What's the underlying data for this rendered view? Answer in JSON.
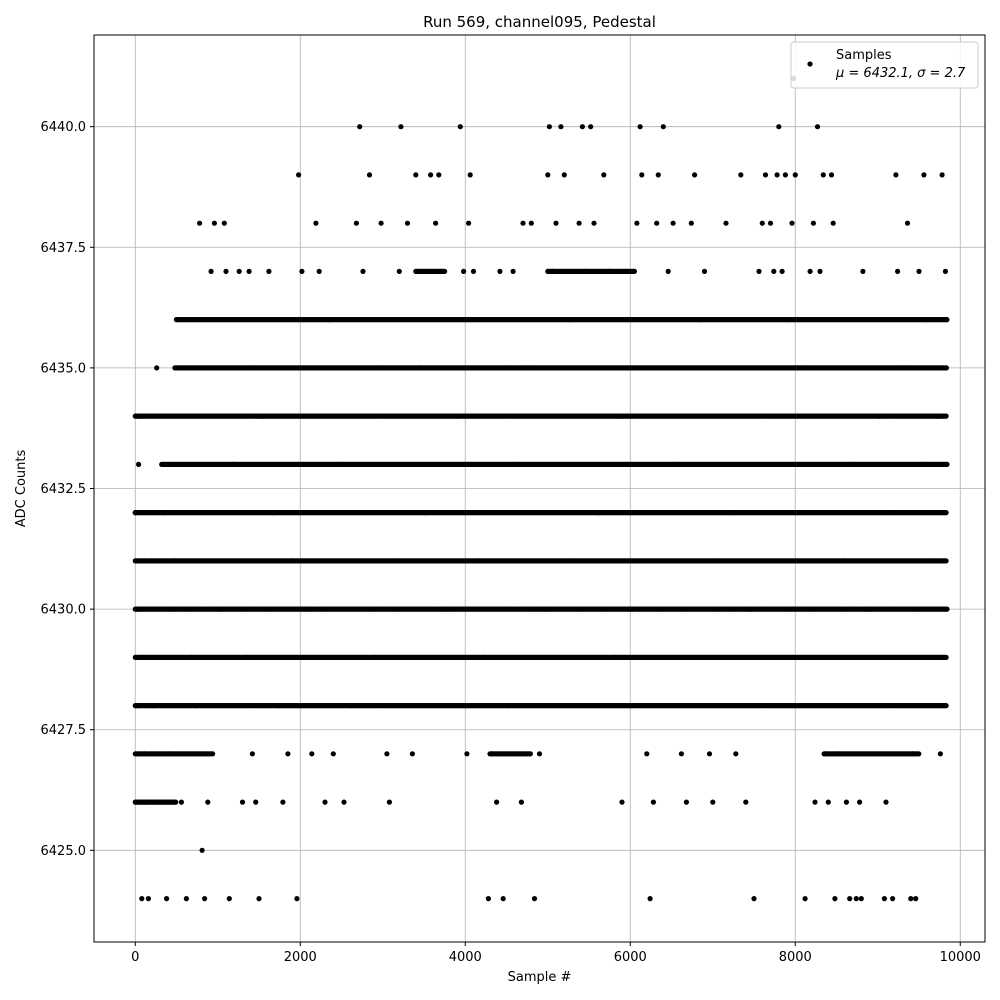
{
  "chart_data": {
    "type": "scatter",
    "title": "Run 569, channel095, Pedestal",
    "xlabel": "Sample #",
    "ylabel": "ADC Counts",
    "xlim": [
      -500,
      10300
    ],
    "ylim": [
      6423.1,
      6441.9
    ],
    "x_ticks": [
      0,
      2000,
      4000,
      6000,
      8000,
      10000
    ],
    "y_ticks": [
      6425.0,
      6427.5,
      6430.0,
      6432.5,
      6435.0,
      6437.5,
      6440.0
    ],
    "x_tick_labels": [
      "0",
      "2000",
      "4000",
      "6000",
      "8000",
      "10000"
    ],
    "y_tick_labels": [
      "6425.0",
      "6427.5",
      "6430.0",
      "6432.5",
      "6435.0",
      "6437.5",
      "6440.0"
    ],
    "grid": true,
    "legend_position": "top-right",
    "marker_color": "#000000",
    "series": [
      {
        "name": "Samples",
        "stats_label": "μ = 6432.1, σ = 2.7",
        "points": [
          [
            0,
            6432
          ],
          [
            10,
            6431
          ],
          [
            20,
            6430
          ],
          [
            30,
            6428
          ],
          [
            40,
            6433
          ],
          [
            60,
            6434
          ],
          [
            80,
            6424
          ],
          [
            90,
            6429
          ],
          [
            110,
            6427
          ],
          [
            130,
            6426
          ],
          [
            160,
            6424
          ],
          [
            200,
            6431
          ],
          [
            220,
            6428
          ],
          [
            260,
            6435
          ],
          [
            300,
            6429
          ],
          [
            340,
            6432
          ],
          [
            380,
            6424
          ],
          [
            420,
            6427
          ],
          [
            460,
            6430
          ],
          [
            480,
            6431
          ],
          [
            500,
            6436
          ],
          [
            560,
            6426
          ],
          [
            620,
            6424
          ],
          [
            680,
            6429
          ],
          [
            740,
            6428
          ],
          [
            780,
            6438
          ],
          [
            810,
            6425
          ],
          [
            840,
            6424
          ],
          [
            880,
            6426
          ],
          [
            920,
            6437
          ],
          [
            960,
            6438
          ],
          [
            1020,
            6430
          ],
          [
            1080,
            6438
          ],
          [
            1100,
            6437
          ],
          [
            1140,
            6424
          ],
          [
            1180,
            6433
          ],
          [
            1260,
            6437
          ],
          [
            1300,
            6426
          ],
          [
            1350,
            6429
          ],
          [
            1380,
            6437
          ],
          [
            1420,
            6427
          ],
          [
            1460,
            6426
          ],
          [
            1500,
            6424
          ],
          [
            1540,
            6434
          ],
          [
            1620,
            6437
          ],
          [
            1680,
            6432
          ],
          [
            1740,
            6428
          ],
          [
            1790,
            6426
          ],
          [
            1850,
            6427
          ],
          [
            1900,
            6431
          ],
          [
            1960,
            6424
          ],
          [
            1980,
            6439
          ],
          [
            2020,
            6437
          ],
          [
            2080,
            6430
          ],
          [
            2140,
            6427
          ],
          [
            2190,
            6438
          ],
          [
            2230,
            6437
          ],
          [
            2300,
            6426
          ],
          [
            2350,
            6436
          ],
          [
            2400,
            6427
          ],
          [
            2460,
            6433
          ],
          [
            2530,
            6426
          ],
          [
            2600,
            6428
          ],
          [
            2680,
            6438
          ],
          [
            2720,
            6440
          ],
          [
            2760,
            6437
          ],
          [
            2840,
            6439
          ],
          [
            2900,
            6429
          ],
          [
            2980,
            6438
          ],
          [
            3050,
            6427
          ],
          [
            3080,
            6426
          ],
          [
            3140,
            6431
          ],
          [
            3200,
            6437
          ],
          [
            3220,
            6440
          ],
          [
            3300,
            6438
          ],
          [
            3360,
            6427
          ],
          [
            3400,
            6439
          ],
          [
            3460,
            6435
          ],
          [
            3520,
            6432
          ],
          [
            3580,
            6439
          ],
          [
            3640,
            6438
          ],
          [
            3680,
            6439
          ],
          [
            3700,
            6437
          ],
          [
            3760,
            6430
          ],
          [
            3820,
            6428
          ],
          [
            3900,
            6434
          ],
          [
            3940,
            6440
          ],
          [
            3980,
            6437
          ],
          [
            4020,
            6427
          ],
          [
            4040,
            6438
          ],
          [
            4060,
            6439
          ],
          [
            4100,
            6437
          ],
          [
            4160,
            6431
          ],
          [
            4220,
            6429
          ],
          [
            4280,
            6424
          ],
          [
            4320,
            6427
          ],
          [
            4380,
            6426
          ],
          [
            4420,
            6437
          ],
          [
            4460,
            6424
          ],
          [
            4520,
            6428
          ],
          [
            4580,
            6437
          ],
          [
            4640,
            6433
          ],
          [
            4680,
            6426
          ],
          [
            4700,
            6438
          ],
          [
            4760,
            6435
          ],
          [
            4800,
            6438
          ],
          [
            4840,
            6424
          ],
          [
            4900,
            6427
          ],
          [
            4960,
            6430
          ],
          [
            5000,
            6439
          ],
          [
            5020,
            6440
          ],
          [
            5060,
            6437
          ],
          [
            5100,
            6438
          ],
          [
            5160,
            6440
          ],
          [
            5200,
            6439
          ],
          [
            5260,
            6436
          ],
          [
            5320,
            6431
          ],
          [
            5380,
            6438
          ],
          [
            5420,
            6440
          ],
          [
            5460,
            6437
          ],
          [
            5520,
            6440
          ],
          [
            5560,
            6438
          ],
          [
            5620,
            6432
          ],
          [
            5680,
            6439
          ],
          [
            5740,
            6437
          ],
          [
            5800,
            6429
          ],
          [
            5860,
            6434
          ],
          [
            5900,
            6426
          ],
          [
            5960,
            6437
          ],
          [
            6020,
            6430
          ],
          [
            6080,
            6438
          ],
          [
            6120,
            6440
          ],
          [
            6140,
            6439
          ],
          [
            6200,
            6427
          ],
          [
            6240,
            6424
          ],
          [
            6280,
            6426
          ],
          [
            6320,
            6438
          ],
          [
            6340,
            6439
          ],
          [
            6400,
            6440
          ],
          [
            6460,
            6437
          ],
          [
            6520,
            6438
          ],
          [
            6580,
            6433
          ],
          [
            6620,
            6427
          ],
          [
            6680,
            6426
          ],
          [
            6740,
            6438
          ],
          [
            6780,
            6439
          ],
          [
            6840,
            6436
          ],
          [
            6900,
            6437
          ],
          [
            6960,
            6427
          ],
          [
            7000,
            6426
          ],
          [
            7060,
            6431
          ],
          [
            7120,
            6429
          ],
          [
            7160,
            6438
          ],
          [
            7220,
            6432
          ],
          [
            7280,
            6427
          ],
          [
            7340,
            6439
          ],
          [
            7400,
            6426
          ],
          [
            7460,
            6430
          ],
          [
            7500,
            6424
          ],
          [
            7560,
            6437
          ],
          [
            7600,
            6438
          ],
          [
            7640,
            6439
          ],
          [
            7700,
            6438
          ],
          [
            7740,
            6437
          ],
          [
            7780,
            6439
          ],
          [
            7800,
            6440
          ],
          [
            7840,
            6437
          ],
          [
            7880,
            6439
          ],
          [
            7920,
            6436
          ],
          [
            7960,
            6438
          ],
          [
            7980,
            6441
          ],
          [
            8000,
            6439
          ],
          [
            8060,
            6435
          ],
          [
            8120,
            6424
          ],
          [
            8180,
            6437
          ],
          [
            8220,
            6438
          ],
          [
            8240,
            6426
          ],
          [
            8270,
            6440
          ],
          [
            8300,
            6437
          ],
          [
            8340,
            6439
          ],
          [
            8360,
            6427
          ],
          [
            8400,
            6426
          ],
          [
            8440,
            6439
          ],
          [
            8460,
            6438
          ],
          [
            8480,
            6424
          ],
          [
            8520,
            6427
          ],
          [
            8580,
            6431
          ],
          [
            8620,
            6426
          ],
          [
            8660,
            6424
          ],
          [
            8700,
            6433
          ],
          [
            8740,
            6424
          ],
          [
            8780,
            6426
          ],
          [
            8800,
            6424
          ],
          [
            8820,
            6437
          ],
          [
            8860,
            6430
          ],
          [
            8900,
            6427
          ],
          [
            8960,
            6429
          ],
          [
            9020,
            6434
          ],
          [
            9060,
            6428
          ],
          [
            9080,
            6424
          ],
          [
            9100,
            6426
          ],
          [
            9140,
            6432
          ],
          [
            9180,
            6424
          ],
          [
            9220,
            6439
          ],
          [
            9240,
            6437
          ],
          [
            9280,
            6429
          ],
          [
            9320,
            6435
          ],
          [
            9360,
            6438
          ],
          [
            9400,
            6424
          ],
          [
            9420,
            6427
          ],
          [
            9460,
            6424
          ],
          [
            9500,
            6437
          ],
          [
            9540,
            6433
          ],
          [
            9560,
            6439
          ],
          [
            9600,
            6436
          ],
          [
            9640,
            6431
          ],
          [
            9680,
            6428
          ],
          [
            9720,
            6434
          ],
          [
            9760,
            6427
          ],
          [
            9780,
            6439
          ],
          [
            9800,
            6432
          ],
          [
            9820,
            6437
          ],
          [
            9840,
            6430
          ]
        ],
        "dense_levels": [
          {
            "y": 6436,
            "x_ranges": [
              [
                500,
                9840
              ]
            ]
          },
          {
            "y": 6435,
            "x_ranges": [
              [
                480,
                9840
              ]
            ]
          },
          {
            "y": 6434,
            "x_ranges": [
              [
                0,
                9840
              ]
            ]
          },
          {
            "y": 6433,
            "x_ranges": [
              [
                320,
                9840
              ]
            ]
          },
          {
            "y": 6432,
            "x_ranges": [
              [
                0,
                9840
              ]
            ]
          },
          {
            "y": 6431,
            "x_ranges": [
              [
                0,
                9840
              ]
            ]
          },
          {
            "y": 6430,
            "x_ranges": [
              [
                0,
                9840
              ]
            ]
          },
          {
            "y": 6429,
            "x_ranges": [
              [
                0,
                9840
              ]
            ]
          },
          {
            "y": 6428,
            "x_ranges": [
              [
                0,
                9840
              ]
            ]
          },
          {
            "y": 6437,
            "x_ranges": [
              [
                5000,
                6050
              ],
              [
                3400,
                3750
              ]
            ]
          },
          {
            "y": 6427,
            "x_ranges": [
              [
                0,
                950
              ],
              [
                4300,
                4800
              ],
              [
                8350,
                9500
              ]
            ]
          },
          {
            "y": 6426,
            "x_ranges": [
              [
                0,
                500
              ]
            ]
          }
        ]
      }
    ]
  }
}
